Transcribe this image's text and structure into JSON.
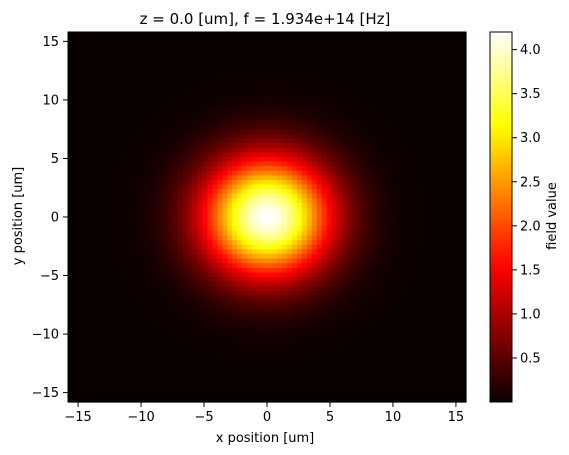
{
  "chart_data": {
    "type": "heatmap",
    "title": "z = 0.0 [um], f = 1.934e+14 [Hz]",
    "xlabel": "x position [um]",
    "ylabel": "y position [um]",
    "colorbar_label": "field value",
    "colormap": "hot",
    "xlim": [
      -15.8,
      15.8
    ],
    "ylim": [
      -15.8,
      15.8
    ],
    "x_ticks": [
      -15,
      -10,
      -5,
      0,
      5,
      10,
      15
    ],
    "x_tick_labels": [
      "−15",
      "−10",
      "−5",
      "0",
      "5",
      "10",
      "15"
    ],
    "y_ticks": [
      -15,
      -10,
      -5,
      0,
      5,
      10,
      15
    ],
    "y_tick_labels": [
      "−15",
      "−10",
      "−5",
      "0",
      "5",
      "10",
      "15"
    ],
    "colorbar_range": [
      0.0,
      4.2
    ],
    "colorbar_ticks": [
      0.5,
      1.0,
      1.5,
      2.0,
      2.5,
      3.0,
      3.5,
      4.0
    ],
    "colorbar_tick_labels": [
      "0.5",
      "1.0",
      "1.5",
      "2.0",
      "2.5",
      "3.0",
      "3.5",
      "4.0"
    ],
    "field": {
      "shape": "gaussian",
      "peak_value": 4.2,
      "center": [
        0,
        0
      ],
      "waist": 5.0
    }
  }
}
